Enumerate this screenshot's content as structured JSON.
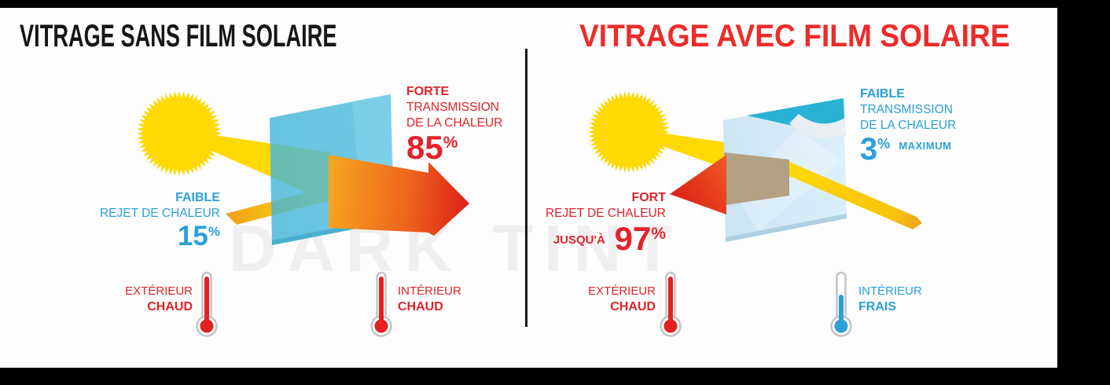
{
  "watermark": "DARK TINT",
  "colors": {
    "frame": "#000000",
    "title_black": "#161616",
    "title_red": "#ed2b2a",
    "text_red": "#e3222a",
    "text_blue": "#2aa0db",
    "sun": "#ffd903",
    "beam_yellow": "#ffd903",
    "beam_orange": "#f0a21c",
    "arrow_orange": "#f6a41f",
    "arrow_red": "#db1f18",
    "glass_left": "#52bedd",
    "glass_left_light": "#85d3ea",
    "glass_right": "#c6e3f2",
    "glass_right_light": "#daeefa",
    "film_blue": "#29b2d6",
    "film_curl": "#e8eef1",
    "beam_through_tan": "#b4a083",
    "thermo_red": "#e3201f",
    "thermo_blue": "#2c9fd8",
    "thermo_outline": "#c4c4c4"
  },
  "panels": {
    "left": {
      "title": "VITRAGE SANS FILM SOLAIRE",
      "transmission": {
        "qualifier": "FORTE",
        "line1": "TRANSMISSION",
        "line2": "DE LA CHALEUR",
        "value": "85",
        "unit": "%"
      },
      "rejection": {
        "qualifier": "FAIBLE",
        "line1": "REJET DE CHALEUR",
        "value": "15",
        "unit": "%"
      },
      "exterior": {
        "label": "EXTÉRIEUR",
        "state": "CHAUD"
      },
      "interior": {
        "label": "INTÉRIEUR",
        "state": "CHAUD"
      }
    },
    "right": {
      "title": "VITRAGE AVEC FILM SOLAIRE",
      "transmission": {
        "qualifier": "FAIBLE",
        "line1": "TRANSMISSION",
        "line2": "DE LA CHALEUR",
        "value": "3",
        "unit": "%",
        "suffix": "MAXIMUM"
      },
      "rejection": {
        "qualifier": "FORT",
        "line1": "REJET DE CHALEUR",
        "prefix": "JUSQU'À",
        "value": "97",
        "unit": "%"
      },
      "exterior": {
        "label": "EXTÉRIEUR",
        "state": "CHAUD"
      },
      "interior": {
        "label": "INTÉRIEUR",
        "state": "FRAIS"
      }
    }
  }
}
